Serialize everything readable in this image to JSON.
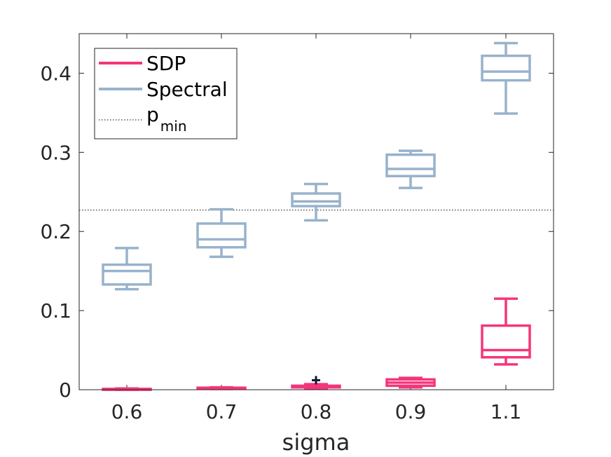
{
  "chart_data": {
    "type": "boxplot",
    "title": "",
    "xlabel": "sigma",
    "ylabel": "",
    "categories": [
      "0.6",
      "0.7",
      "0.8",
      "0.9",
      "1.1"
    ],
    "ylim": [
      0,
      0.45
    ],
    "yticks": [
      0,
      0.1,
      0.2,
      0.3,
      0.4
    ],
    "ytick_labels": [
      "0",
      "0.1",
      "0.2",
      "0.3",
      "0.4"
    ],
    "reference_line": {
      "name": "p_min",
      "value": 0.227,
      "color": "#000000",
      "style": "dotted"
    },
    "series": [
      {
        "name": "SDP",
        "color": "#f5357a",
        "boxes": [
          {
            "min": 0.0,
            "q1": 0.0,
            "median": 0.0005,
            "q3": 0.001,
            "max": 0.0015,
            "outliers": []
          },
          {
            "min": 0.001,
            "q1": 0.0015,
            "median": 0.002,
            "q3": 0.0025,
            "max": 0.003,
            "outliers": []
          },
          {
            "min": 0.002,
            "q1": 0.003,
            "median": 0.004,
            "q3": 0.005,
            "max": 0.007,
            "outliers": [
              0.012
            ]
          },
          {
            "min": 0.003,
            "q1": 0.005,
            "median": 0.009,
            "q3": 0.013,
            "max": 0.015,
            "outliers": []
          },
          {
            "min": 0.032,
            "q1": 0.041,
            "median": 0.05,
            "q3": 0.081,
            "max": 0.115,
            "outliers": []
          }
        ]
      },
      {
        "name": "Spectral",
        "color": "#98b2cc",
        "boxes": [
          {
            "min": 0.127,
            "q1": 0.133,
            "median": 0.15,
            "q3": 0.158,
            "max": 0.179,
            "outliers": []
          },
          {
            "min": 0.168,
            "q1": 0.18,
            "median": 0.19,
            "q3": 0.21,
            "max": 0.228,
            "outliers": []
          },
          {
            "min": 0.214,
            "q1": 0.232,
            "median": 0.238,
            "q3": 0.248,
            "max": 0.26,
            "outliers": []
          },
          {
            "min": 0.255,
            "q1": 0.27,
            "median": 0.279,
            "q3": 0.297,
            "max": 0.302,
            "outliers": []
          },
          {
            "min": 0.349,
            "q1": 0.391,
            "median": 0.402,
            "q3": 0.422,
            "max": 0.438,
            "outliers": []
          }
        ]
      }
    ],
    "legend": {
      "position": "top-left",
      "entries": [
        {
          "label": "SDP",
          "series": "SDP"
        },
        {
          "label": "Spectral",
          "series": "Spectral"
        },
        {
          "label": "p",
          "subscript": "min",
          "series": "p_min"
        }
      ]
    }
  }
}
